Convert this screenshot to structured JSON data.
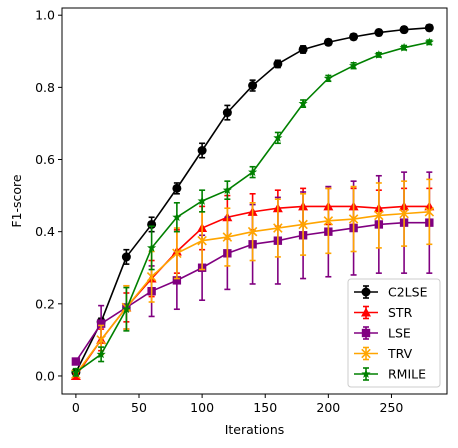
{
  "chart_data": {
    "type": "line",
    "xlabel": "Iterations",
    "ylabel": "F1-score",
    "xlim": [
      -11,
      294
    ],
    "ylim": [
      -0.05,
      1.02
    ],
    "xticks": [
      "0",
      "50",
      "100",
      "150",
      "200",
      "250"
    ],
    "yticks": [
      "0.0",
      "0.2",
      "0.4",
      "0.6",
      "0.8",
      "1.0"
    ],
    "legend_position": "bottom-right",
    "grid": false,
    "x": [
      0,
      20,
      40,
      60,
      80,
      100,
      120,
      140,
      160,
      180,
      200,
      220,
      240,
      260,
      280
    ],
    "series": [
      {
        "name": "C2LSE",
        "color": "#000000",
        "marker": "circle",
        "values": [
          0.01,
          0.15,
          0.33,
          0.42,
          0.52,
          0.625,
          0.73,
          0.805,
          0.865,
          0.905,
          0.925,
          0.94,
          0.952,
          0.96,
          0.965
        ],
        "errors": [
          0.01,
          0.01,
          0.02,
          0.02,
          0.015,
          0.02,
          0.02,
          0.015,
          0.01,
          0.01,
          0.008,
          0.008,
          0.008,
          0.008,
          0.008
        ]
      },
      {
        "name": "STR",
        "color": "#ff0000",
        "marker": "triangle",
        "values": [
          0.0,
          0.1,
          0.19,
          0.27,
          0.345,
          0.41,
          0.44,
          0.455,
          0.465,
          0.47,
          0.47,
          0.47,
          0.465,
          0.47,
          0.47
        ],
        "errors": [
          0.005,
          0.03,
          0.04,
          0.05,
          0.06,
          0.06,
          0.06,
          0.05,
          0.05,
          0.05,
          0.05,
          0.05,
          0.05,
          0.05,
          0.05
        ]
      },
      {
        "name": "LSE",
        "color": "#800080",
        "marker": "square",
        "values": [
          0.04,
          0.145,
          0.19,
          0.235,
          0.265,
          0.3,
          0.34,
          0.365,
          0.375,
          0.39,
          0.4,
          0.41,
          0.42,
          0.425,
          0.425
        ],
        "errors": [
          0.005,
          0.05,
          0.06,
          0.07,
          0.08,
          0.09,
          0.1,
          0.11,
          0.12,
          0.12,
          0.125,
          0.13,
          0.135,
          0.14,
          0.14
        ]
      },
      {
        "name": "TRV",
        "color": "#ffa500",
        "marker": "x",
        "values": [
          0.005,
          0.1,
          0.19,
          0.275,
          0.34,
          0.375,
          0.385,
          0.4,
          0.41,
          0.42,
          0.43,
          0.435,
          0.445,
          0.45,
          0.455
        ],
        "errors": [
          0.005,
          0.04,
          0.06,
          0.07,
          0.07,
          0.08,
          0.08,
          0.08,
          0.08,
          0.085,
          0.09,
          0.09,
          0.09,
          0.09,
          0.09
        ]
      },
      {
        "name": "RMILE",
        "color": "#008000",
        "marker": "star",
        "values": [
          0.01,
          0.06,
          0.185,
          0.355,
          0.44,
          0.485,
          0.515,
          0.565,
          0.66,
          0.755,
          0.825,
          0.86,
          0.89,
          0.91,
          0.925
        ],
        "errors": [
          0.01,
          0.02,
          0.06,
          0.06,
          0.04,
          0.03,
          0.025,
          0.015,
          0.015,
          0.01,
          0.008,
          0.008,
          0.006,
          0.006,
          0.006
        ]
      }
    ]
  }
}
